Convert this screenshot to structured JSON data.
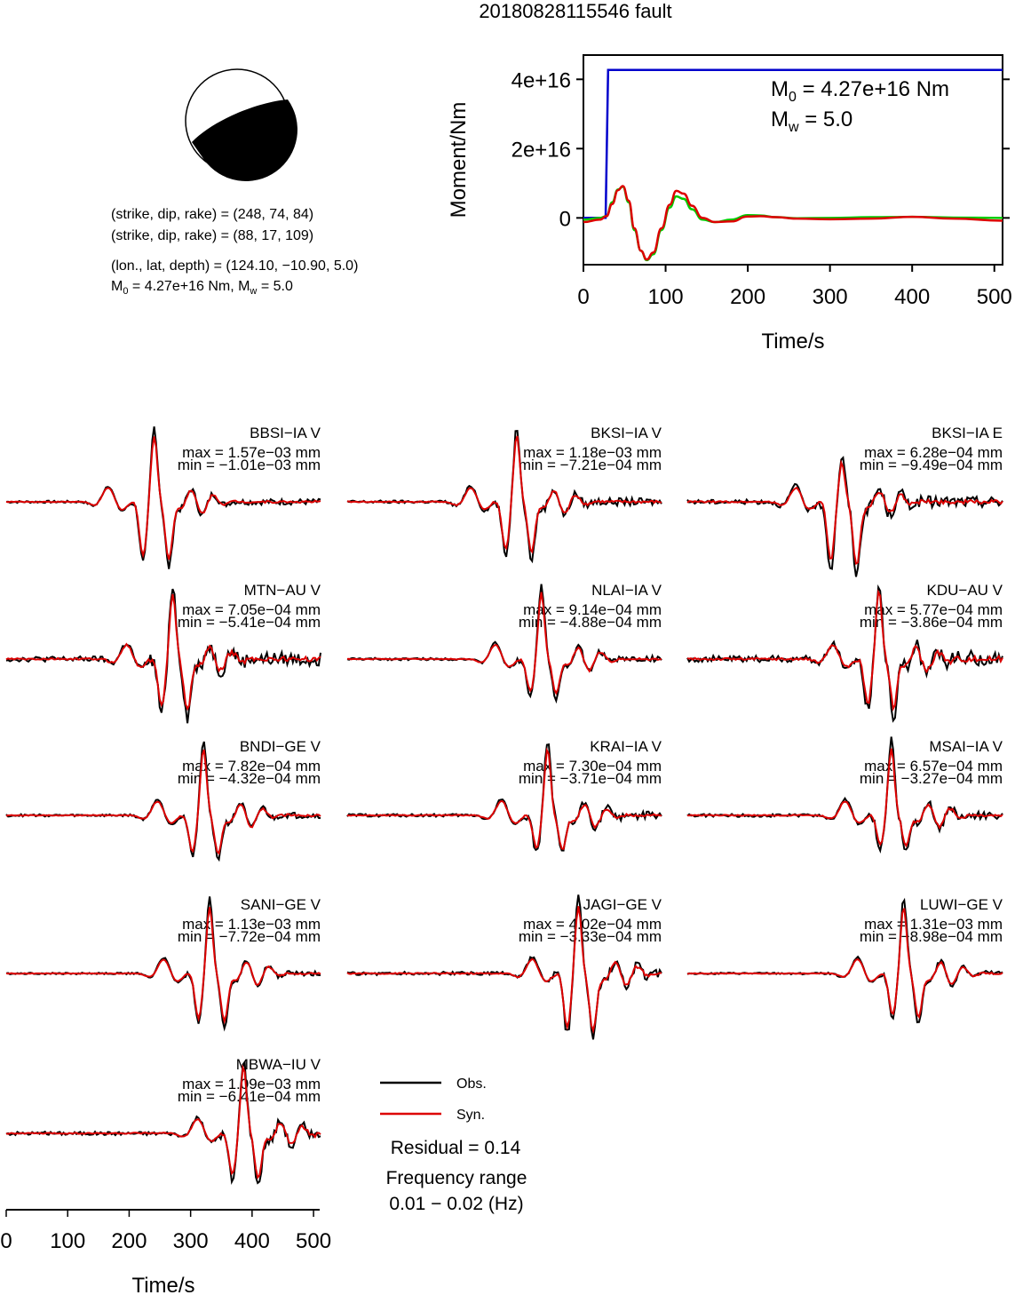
{
  "figure": {
    "title": "20180828115546 fault"
  },
  "focal": {
    "plane1": "(strike, dip, rake) = (248, 74, 84)",
    "plane2": "(strike, dip, rake) = (88, 17, 109)",
    "location": "(lon., lat, depth) = (124.10, −10.90, 5.0)",
    "m0_prefix": "M",
    "m0_sub": "0",
    "m0_value": " = 4.27e+16 Nm, M",
    "mw_sub": "w",
    "mw_value": " = 5.0"
  },
  "chart_data": [
    {
      "type": "line",
      "ylabel": "Moment/Nm",
      "xlabel": "Time/s",
      "xlim": [
        0,
        510
      ],
      "ylim": [
        -1.35e+16,
        4.7e+16
      ],
      "x_ticks": [
        "0",
        "100",
        "200",
        "300",
        "400",
        "500"
      ],
      "y_ticks": [
        "0",
        "2e+16",
        "4e+16"
      ],
      "annotation_m0_prefix": "M",
      "annotation_m0_sub": "0",
      "annotation_m0_value": " = 4.27e+16 Nm",
      "annotation_mw_prefix": "M",
      "annotation_mw_sub": "w",
      "annotation_mw_value": " = 5.0",
      "series": [
        {
          "color": "#0000cc",
          "x": [
            0,
            27,
            30,
            510
          ],
          "y": [
            0,
            0,
            4.27e+16,
            4.27e+16
          ]
        },
        {
          "color": "#00cc00",
          "x": [
            0,
            20,
            28,
            35,
            42,
            48,
            55,
            62,
            70,
            77,
            85,
            95,
            105,
            113,
            122,
            132,
            145,
            160,
            180,
            200,
            215,
            235,
            260,
            300,
            350,
            400,
            450,
            510
          ],
          "y": [
            -500000000000000.0,
            0,
            500000000000000.0,
            4500000000000000.0,
            8200000000000000.0,
            9000000000000000.0,
            4500000000000000.0,
            -3500000000000000.0,
            -9500000000000000.0,
            -1.22e+16,
            -1.05e+16,
            -3500000000000000.0,
            3000000000000000.0,
            6200000000000000.0,
            5500000000000000.0,
            2500000000000000.0,
            -500000000000000.0,
            -1200000000000000.0,
            -500000000000000.0,
            800000000000000.0,
            700000000000000.0,
            200000000000000.0,
            -100000000000000.0,
            0,
            200000000000000.0,
            300000000000000.0,
            100000000000000.0,
            0
          ]
        },
        {
          "color": "#dd0000",
          "x": [
            0,
            20,
            28,
            35,
            42,
            48,
            55,
            62,
            70,
            77,
            85,
            95,
            105,
            113,
            122,
            132,
            145,
            160,
            180,
            200,
            215,
            235,
            260,
            300,
            350,
            400,
            450,
            510
          ],
          "y": [
            -1200000000000000.0,
            -500000000000000.0,
            500000000000000.0,
            4000000000000000.0,
            8000000000000000.0,
            9200000000000000.0,
            5000000000000000.0,
            -3000000000000000.0,
            -9500000000000000.0,
            -1.2e+16,
            -1e+16,
            -3000000000000000.0,
            3800000000000000.0,
            7800000000000000.0,
            7000000000000000.0,
            3500000000000000.0,
            0,
            -1200000000000000.0,
            -1000000000000000.0,
            400000000000000.0,
            500000000000000.0,
            200000000000000.0,
            -200000000000000.0,
            -400000000000000.0,
            -200000000000000.0,
            300000000000000.0,
            -200000000000000.0,
            -800000000000000.0
          ]
        }
      ]
    },
    {
      "type": "line",
      "xlabel": "Time/s",
      "xlim": [
        0,
        510
      ],
      "x_ticks": [
        "0",
        "100",
        "200",
        "300",
        "400",
        "500"
      ],
      "legend": {
        "obs": "Obs.",
        "syn": "Syn.",
        "obs_color": "#000000",
        "syn_color": "#dd0000"
      },
      "residual": "Residual = 0.14",
      "freq_label": "Frequency range",
      "freq_value": "0.01 − 0.02 (Hz)",
      "stations": [
        {
          "name": "BBSI−IA V",
          "max": "max = 1.57e−03 mm",
          "min": "min = −1.01e−03 mm",
          "peak_x": 240,
          "peak_y": 1.0,
          "trough_y": -0.9,
          "noise": 0.08
        },
        {
          "name": "BKSI−IA V",
          "max": "max = 1.18e−03 mm",
          "min": "min = −7.21e−04 mm",
          "peak_x": 275,
          "peak_y": 1.0,
          "trough_y": -0.8,
          "noise": 0.1
        },
        {
          "name": "BKSI−IA E",
          "max": "max = 6.28e−04 mm",
          "min": "min = −9.49e−04 mm",
          "peak_x": 250,
          "peak_y": 0.6,
          "trough_y": -1.0,
          "noise": 0.15
        },
        {
          "name": "MTN−AU V",
          "max": "max = 7.05e−04 mm",
          "min": "min = −5.41e−04 mm",
          "peak_x": 270,
          "peak_y": 1.0,
          "trough_y": -0.8,
          "noise": 0.18
        },
        {
          "name": "NLAI−IA V",
          "max": "max = 9.14e−04 mm",
          "min": "min = −4.88e−04 mm",
          "peak_x": 315,
          "peak_y": 1.0,
          "trough_y": -0.55,
          "noise": 0.08
        },
        {
          "name": "KDU−AU V",
          "max": "max = 5.77e−04 mm",
          "min": "min = −3.86e−04 mm",
          "peak_x": 310,
          "peak_y": 1.0,
          "trough_y": -0.75,
          "noise": 0.22
        },
        {
          "name": "BNDI−GE V",
          "max": "max = 7.82e−04 mm",
          "min": "min = −4.32e−04 mm",
          "peak_x": 320,
          "peak_y": 1.0,
          "trough_y": -0.6,
          "noise": 0.08
        },
        {
          "name": "KRAI−IA V",
          "max": "max = 7.30e−04 mm",
          "min": "min = −3.71e−04 mm",
          "peak_x": 325,
          "peak_y": 1.0,
          "trough_y": -0.55,
          "noise": 0.1
        },
        {
          "name": "MSAI−IA V",
          "max": "max = 6.57e−04 mm",
          "min": "min = −3.27e−04 mm",
          "peak_x": 330,
          "peak_y": 1.0,
          "trough_y": -0.5,
          "noise": 0.1
        },
        {
          "name": "SANI−GE V",
          "max": "max = 1.13e−03 mm",
          "min": "min = −7.72e−04 mm",
          "peak_x": 330,
          "peak_y": 1.0,
          "trough_y": -0.75,
          "noise": 0.06
        },
        {
          "name": "JAGI−GE V",
          "max": "max = 4.02e−04 mm",
          "min": "min = −3.33e−04 mm",
          "peak_x": 375,
          "peak_y": 1.0,
          "trough_y": -0.9,
          "noise": 0.12
        },
        {
          "name": "LUWI−GE V",
          "max": "max = 1.31e−03 mm",
          "min": "min = −8.98e−04 mm",
          "peak_x": 350,
          "peak_y": 1.0,
          "trough_y": -0.7,
          "noise": 0.06
        },
        {
          "name": "MBWA−IU V",
          "max": "max = 1.09e−03 mm",
          "min": "min = −6.41e−04 mm",
          "peak_x": 385,
          "peak_y": 1.0,
          "trough_y": -0.7,
          "noise": 0.12
        }
      ]
    }
  ]
}
